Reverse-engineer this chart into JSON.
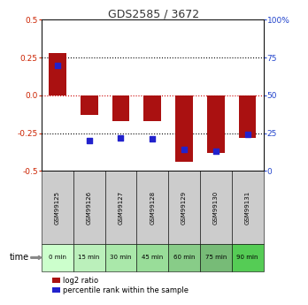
{
  "title": "GDS2585 / 3672",
  "samples": [
    "GSM99125",
    "GSM99126",
    "GSM99127",
    "GSM99128",
    "GSM99129",
    "GSM99130",
    "GSM99131"
  ],
  "time_labels": [
    "0 min",
    "15 min",
    "30 min",
    "45 min",
    "60 min",
    "75 min",
    "90 min"
  ],
  "log2_ratio": [
    0.28,
    -0.13,
    -0.17,
    -0.17,
    -0.44,
    -0.38,
    -0.28
  ],
  "percentile_rank": [
    70,
    20,
    22,
    21,
    14,
    13,
    24
  ],
  "ylim_left": [
    -0.5,
    0.5
  ],
  "ylim_right": [
    0,
    100
  ],
  "bar_color": "#AA1111",
  "dot_color": "#2222CC",
  "title_color": "#333333",
  "left_axis_color": "#CC2200",
  "right_axis_color": "#2244CC",
  "yticks_left": [
    -0.5,
    -0.25,
    0.0,
    0.25,
    0.5
  ],
  "yticks_right": [
    0,
    25,
    50,
    75,
    100
  ],
  "grid_color": "#000000",
  "zero_line_color": "#CC0000",
  "time_row_colors": [
    "#ccffcc",
    "#bbf0bb",
    "#aae8aa",
    "#99dd99",
    "#88cc88",
    "#77bb77",
    "#55cc55"
  ],
  "gsm_row_color": "#cccccc",
  "legend_items": [
    "log2 ratio",
    "percentile rank within the sample"
  ],
  "legend_colors": [
    "#AA1111",
    "#2222CC"
  ]
}
